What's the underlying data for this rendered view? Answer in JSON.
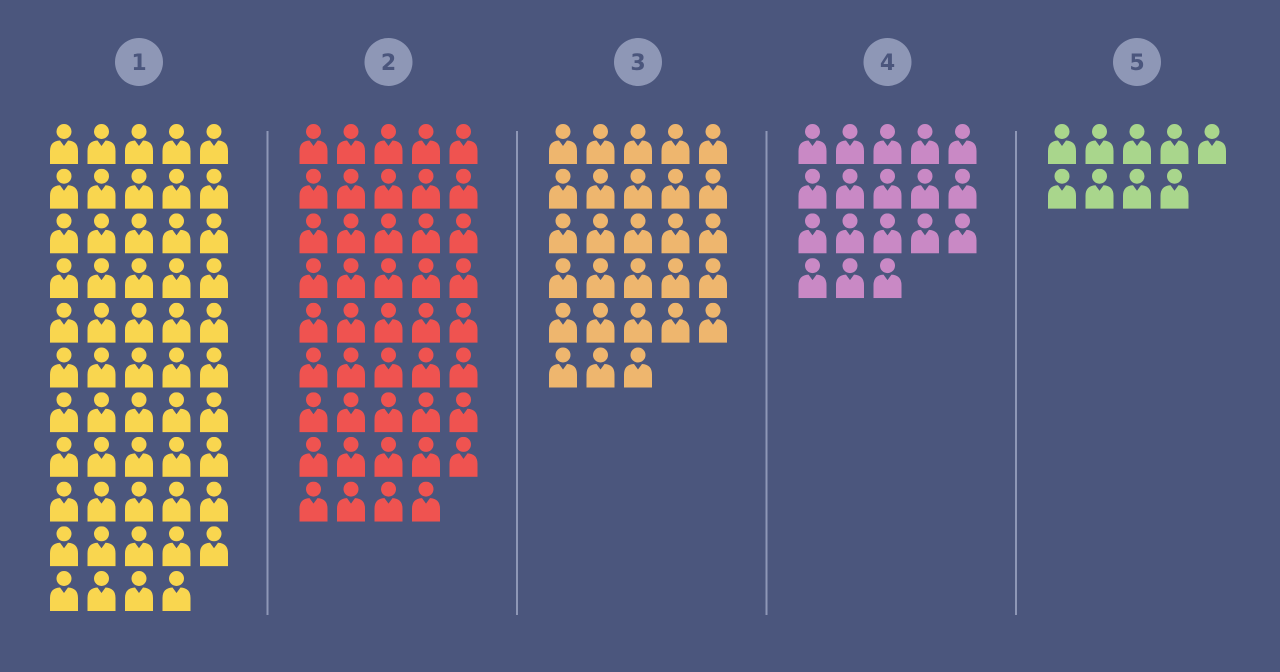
{
  "chart_data": {
    "type": "pictograph",
    "icon": "person-icon",
    "unit_per_icon": 1,
    "max_per_row": 5,
    "categories": [
      "1",
      "2",
      "3",
      "4",
      "5"
    ],
    "values": [
      54,
      44,
      28,
      18,
      9
    ],
    "colors": [
      "#f9d64f",
      "#ef5350",
      "#eeb66e",
      "#c989c5",
      "#a9d68c"
    ],
    "title": "",
    "xlabel": "",
    "ylabel": ""
  },
  "style": {
    "background": "#4b567d",
    "badge_fill": "#8e97b6",
    "badge_text": "#4b567d",
    "divider": "#8e97b6"
  }
}
